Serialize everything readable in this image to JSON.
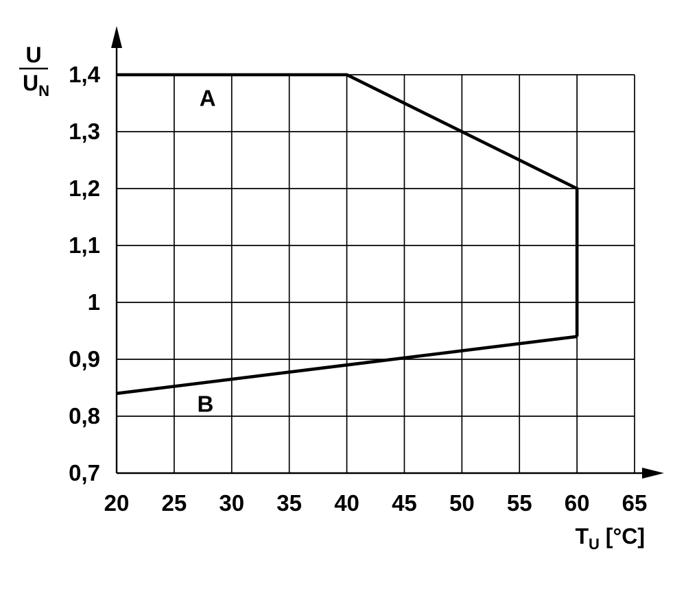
{
  "chart_data": {
    "type": "line",
    "title": "",
    "xlabel": {
      "main": "T",
      "sub": "U",
      "unit": " [°C]"
    },
    "ylabel": {
      "numerator": "U",
      "denominator": "U",
      "denominator_sub": "N"
    },
    "xlim": [
      20,
      65
    ],
    "ylim": [
      0.7,
      1.4
    ],
    "x_ticks": [
      20,
      25,
      30,
      35,
      40,
      45,
      50,
      55,
      60,
      65
    ],
    "x_tick_labels": [
      "20",
      "25",
      "30",
      "35",
      "40",
      "45",
      "50",
      "55",
      "60",
      "65"
    ],
    "y_ticks": [
      0.7,
      0.8,
      0.9,
      1.0,
      1.1,
      1.2,
      1.3,
      1.4
    ],
    "y_tick_labels": [
      "0,7",
      "0,8",
      "0,9",
      "1",
      "1,1",
      "1,2",
      "1,3",
      "1,4"
    ],
    "grid": true,
    "legend_position": "none",
    "line_color": "#000000",
    "grid_color": "#000000",
    "background_color": "#ffffff",
    "series": [
      {
        "name": "A",
        "label": "A",
        "points": [
          [
            20,
            1.4
          ],
          [
            40,
            1.4
          ],
          [
            60,
            1.2
          ],
          [
            60,
            0.94
          ]
        ],
        "label_pos": [
          27.2,
          1.345
        ]
      },
      {
        "name": "B",
        "label": "B",
        "points": [
          [
            20,
            0.84
          ],
          [
            60,
            0.94
          ]
        ],
        "label_pos": [
          27.0,
          0.808
        ]
      }
    ]
  }
}
